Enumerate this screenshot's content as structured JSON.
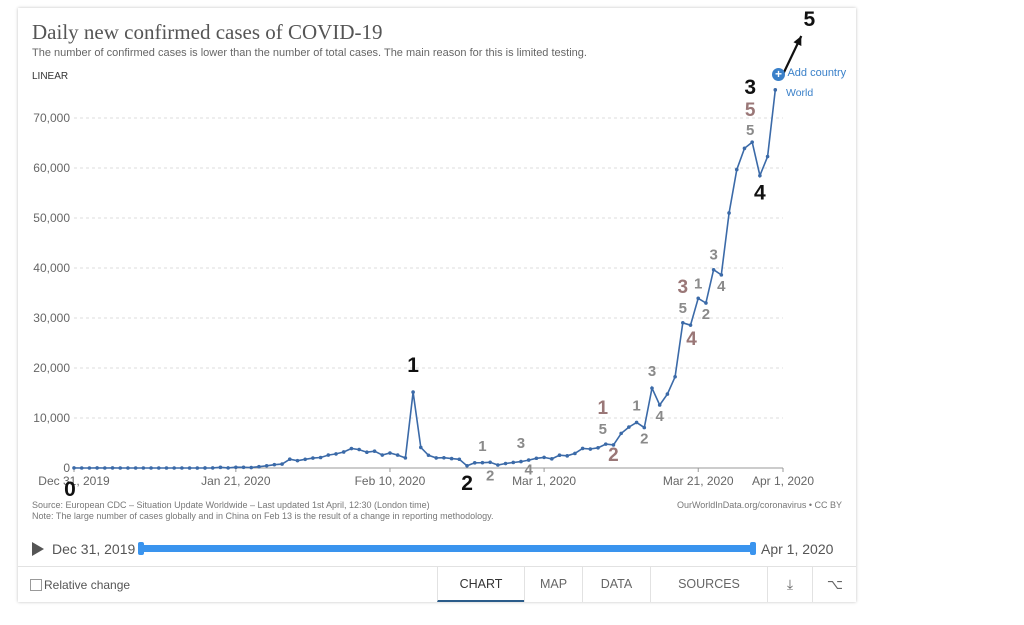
{
  "title": "Daily new confirmed cases of COVID-19",
  "subtitle": "The number of confirmed cases is lower than the number of total cases. The main reason for this is limited testing.",
  "scale_label": "LINEAR",
  "add_country_label": "Add country",
  "series_label": "World",
  "source_line1": "Source: European CDC – Situation Update Worldwide – Last updated 1st April, 12:30 (London time)",
  "source_line2": "Note: The large number of cases globally and in China on Feb 13 is the result of a change in reporting methodology.",
  "credit": "OurWorldInData.org/coronavirus • CC BY",
  "timeline": {
    "start": "Dec 31, 2019",
    "end": "Apr 1, 2020"
  },
  "footer": {
    "relative_change": "Relative change",
    "tabs": [
      "CHART",
      "MAP",
      "DATA",
      "SOURCES"
    ]
  },
  "colors": {
    "line": "#3b6aa8",
    "accent": "#3a94ee",
    "annotation_dark": "#111111",
    "annotation_gray": "#8a8a8a"
  },
  "chart_data": {
    "type": "line",
    "y_ticks": [
      0,
      10000,
      20000,
      30000,
      40000,
      50000,
      60000,
      70000
    ],
    "y_tick_labels": [
      "0",
      "10,000",
      "20,000",
      "30,000",
      "40,000",
      "50,000",
      "60,000",
      "70,000"
    ],
    "x_ticks": [
      0,
      21,
      41,
      61,
      81,
      92
    ],
    "x_tick_labels": [
      "Dec 31, 2019",
      "Jan 21, 2020",
      "Feb 10, 2020",
      "Mar 1, 2020",
      "Mar 21, 2020",
      "Apr 1, 2020"
    ],
    "ylim": [
      0,
      76000
    ],
    "xlim": [
      0,
      92
    ],
    "grid": true,
    "series": [
      {
        "name": "World",
        "values": [
          27,
          0,
          0,
          17,
          0,
          15,
          0,
          0,
          0,
          0,
          0,
          0,
          0,
          0,
          0,
          1,
          1,
          4,
          17,
          136,
          19,
          151,
          140,
          97,
          259,
          441,
          665,
          787,
          1753,
          1466,
          1740,
          1980,
          2102,
          2590,
          2813,
          3209,
          3895,
          3689,
          3154,
          3355,
          2592,
          3002,
          2582,
          2024,
          15185,
          4122,
          2548,
          2015,
          2052,
          1885,
          1749,
          438,
          1037,
          1067,
          1146,
          602,
          894,
          1105,
          1282,
          1582,
          1949,
          2114,
          1830,
          2554,
          2436,
          2912,
          3918,
          3795,
          4047,
          4773,
          4613,
          6925,
          8187,
          9115,
          8078,
          15973,
          12602,
          14782,
          18241,
          29044,
          28564,
          33937,
          33006,
          39652,
          38627,
          51011,
          59678,
          63935,
          65163,
          58472,
          62294,
          75631
        ]
      }
    ],
    "annotations": [
      {
        "x": 0,
        "y": 0,
        "text": "0",
        "color": "dark",
        "dx": -4,
        "dy": 28,
        "size": 21
      },
      {
        "x": 44,
        "y": 15185,
        "text": "1",
        "color": "dark",
        "dx": 0,
        "dy": -20,
        "size": 21
      },
      {
        "x": 51,
        "y": 438,
        "text": "2",
        "color": "dark",
        "dx": 0,
        "dy": 24,
        "size": 21
      },
      {
        "x": 53,
        "y": 1037,
        "text": "1",
        "color": "gray",
        "dx": 0,
        "dy": -12,
        "size": 15
      },
      {
        "x": 54,
        "y": 1067,
        "text": "2",
        "color": "gray",
        "dx": 0,
        "dy": 18,
        "size": 15
      },
      {
        "x": 58,
        "y": 1582,
        "text": "3",
        "color": "gray",
        "dx": 0,
        "dy": -12,
        "size": 15
      },
      {
        "x": 59,
        "y": 1949,
        "text": "4",
        "color": "gray",
        "dx": 0,
        "dy": 16,
        "size": 15
      },
      {
        "x": 69,
        "y": 4773,
        "text": "1",
        "color": "rose",
        "dx": -3,
        "dy": -30,
        "size": 19
      },
      {
        "x": 69,
        "y": 4773,
        "text": "5",
        "color": "gray",
        "dx": -3,
        "dy": -10,
        "size": 15
      },
      {
        "x": 70,
        "y": 4613,
        "text": "2",
        "color": "rose",
        "dx": 0,
        "dy": 16,
        "size": 19
      },
      {
        "x": 73,
        "y": 9115,
        "text": "1",
        "color": "gray",
        "dx": 0,
        "dy": -12,
        "size": 15
      },
      {
        "x": 74,
        "y": 8078,
        "text": "2",
        "color": "gray",
        "dx": 0,
        "dy": 16,
        "size": 15
      },
      {
        "x": 75,
        "y": 15973,
        "text": "3",
        "color": "gray",
        "dx": 0,
        "dy": -12,
        "size": 15
      },
      {
        "x": 76,
        "y": 12602,
        "text": "4",
        "color": "gray",
        "dx": 0,
        "dy": 16,
        "size": 15
      },
      {
        "x": 79,
        "y": 29044,
        "text": "3",
        "color": "rose",
        "dx": 0,
        "dy": -30,
        "size": 19
      },
      {
        "x": 79,
        "y": 29044,
        "text": "5",
        "color": "gray",
        "dx": 0,
        "dy": -10,
        "size": 15
      },
      {
        "x": 80,
        "y": 28564,
        "text": "4",
        "color": "rose",
        "dx": 1,
        "dy": 20,
        "size": 19
      },
      {
        "x": 81,
        "y": 33937,
        "text": "1",
        "color": "gray",
        "dx": 0,
        "dy": -10,
        "size": 15
      },
      {
        "x": 82,
        "y": 33006,
        "text": "2",
        "color": "gray",
        "dx": 0,
        "dy": 16,
        "size": 15
      },
      {
        "x": 83,
        "y": 39652,
        "text": "3",
        "color": "gray",
        "dx": 0,
        "dy": -10,
        "size": 15
      },
      {
        "x": 84,
        "y": 38627,
        "text": "4",
        "color": "gray",
        "dx": 0,
        "dy": 16,
        "size": 15
      },
      {
        "x": 88,
        "y": 65163,
        "text": "3",
        "color": "dark",
        "dx": -2,
        "dy": -48,
        "size": 21
      },
      {
        "x": 88,
        "y": 65163,
        "text": "5",
        "color": "rose",
        "dx": -2,
        "dy": -26,
        "size": 19
      },
      {
        "x": 88,
        "y": 65163,
        "text": "5",
        "color": "gray",
        "dx": -2,
        "dy": -7,
        "size": 15
      },
      {
        "x": 89,
        "y": 58472,
        "text": "4",
        "color": "dark",
        "dx": 0,
        "dy": 24,
        "size": 21
      }
    ],
    "arrow_label": "5"
  }
}
